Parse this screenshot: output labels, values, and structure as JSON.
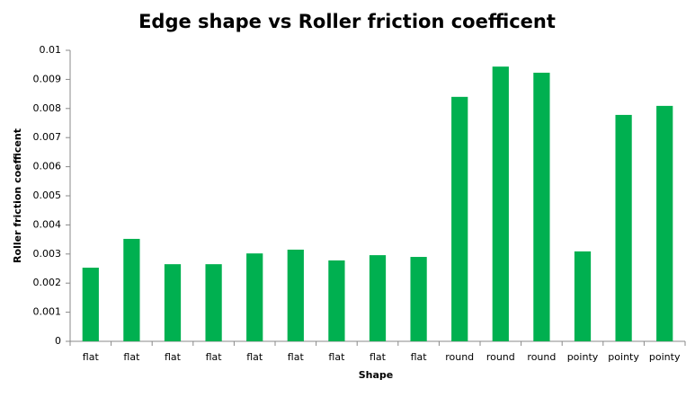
{
  "chart_data": {
    "type": "bar",
    "title": "Edge shape vs Roller friction coefficent",
    "x_label": "Shape",
    "y_label": "Roller friction coefficent",
    "categories": [
      "flat",
      "flat",
      "flat",
      "flat",
      "flat",
      "flat",
      "flat",
      "flat",
      "flat",
      "round",
      "round",
      "round",
      "pointy",
      "pointy",
      "pointy"
    ],
    "values": [
      0.00253,
      0.00352,
      0.00265,
      0.00265,
      0.00302,
      0.00315,
      0.00278,
      0.00296,
      0.0029,
      0.0084,
      0.00944,
      0.00923,
      0.00309,
      0.00778,
      0.00809
    ],
    "color": "#00b050",
    "ylim": [
      0,
      0.01
    ],
    "yticks": [
      0,
      0.001,
      0.002,
      0.003,
      0.004,
      0.005,
      0.006,
      0.007,
      0.008,
      0.009,
      0.01
    ],
    "grid": false
  }
}
